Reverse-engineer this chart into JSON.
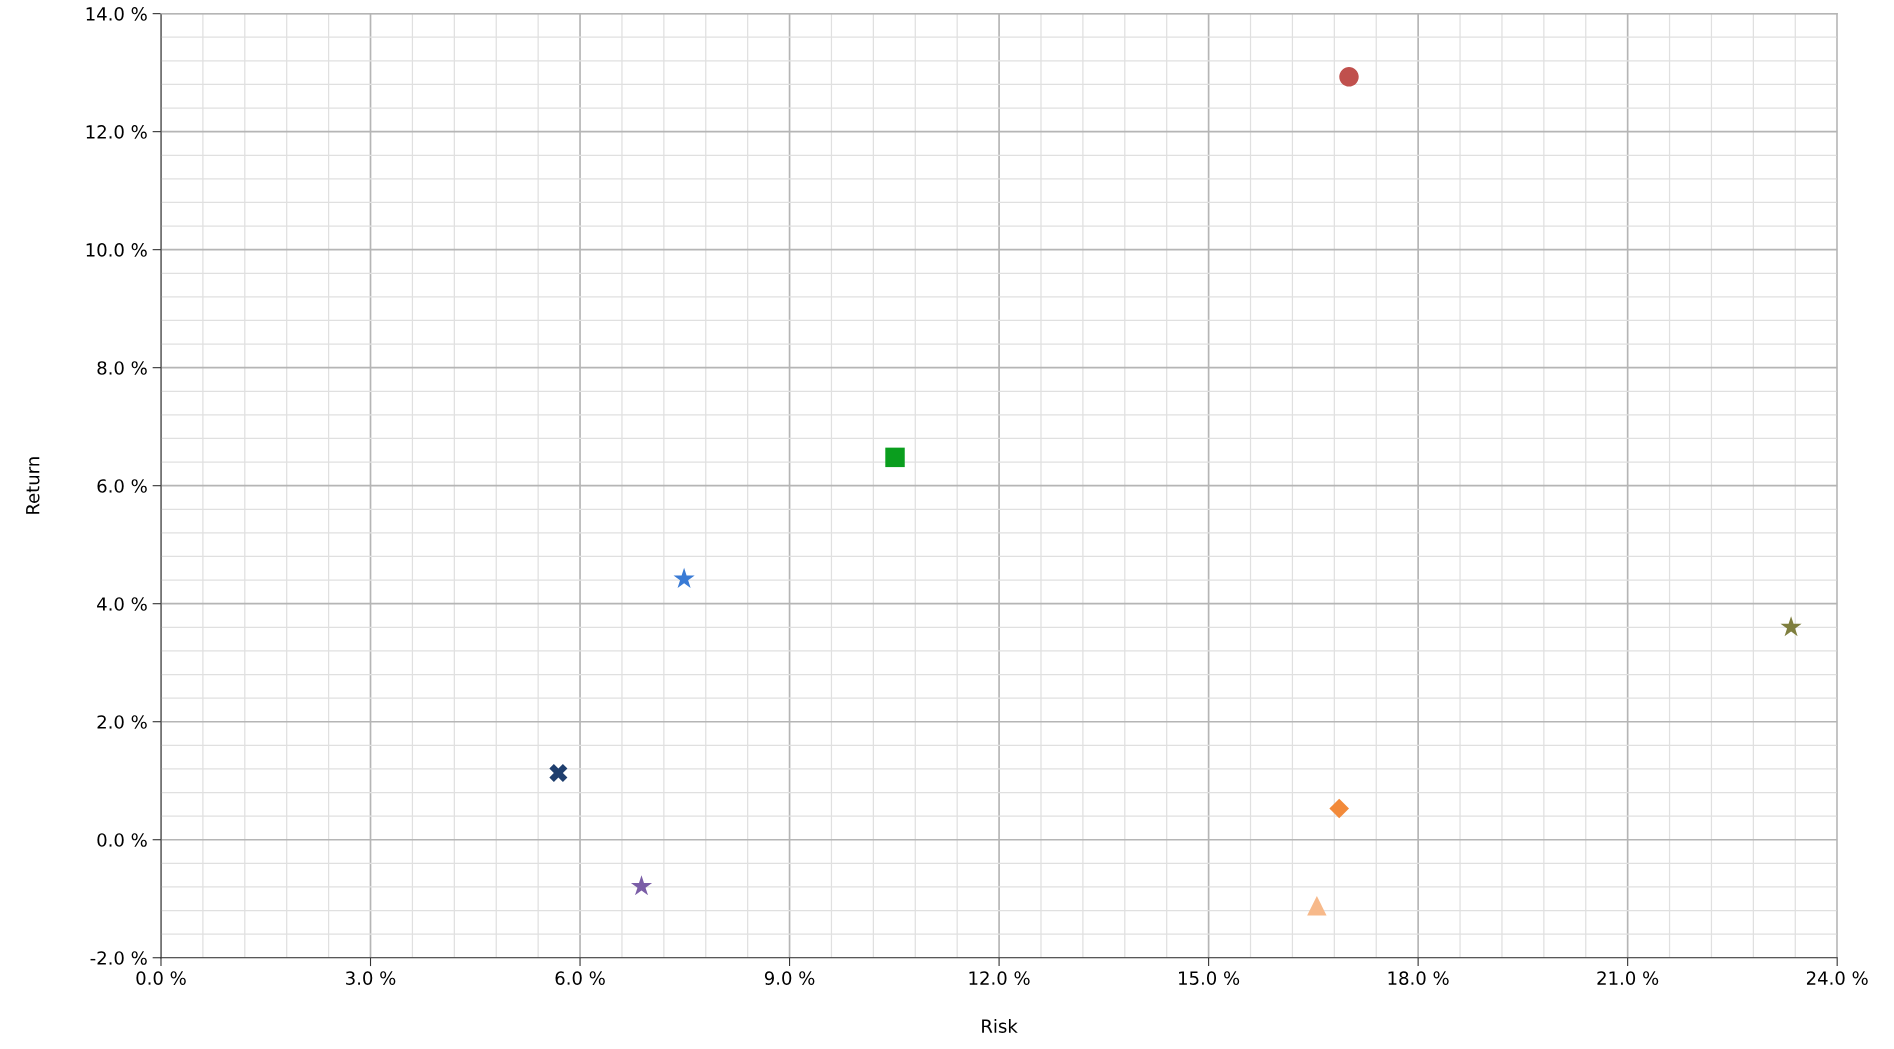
{
  "chart_data": {
    "type": "scatter",
    "xlabel": "Risk",
    "ylabel": "Return",
    "series": [
      {
        "color": "#c0504d",
        "marker": "circle",
        "x": [
          17.01
        ],
        "values": [
          12.93
        ]
      },
      {
        "color": "#0a9e1e",
        "marker": "square",
        "x": [
          10.51
        ],
        "values": [
          6.48
        ]
      },
      {
        "color": "#3a7bd5",
        "marker": "star",
        "x": [
          7.49
        ],
        "values": [
          4.42
        ]
      },
      {
        "color": "#1f3f6e",
        "marker": "cross",
        "x": [
          5.69
        ],
        "values": [
          1.13
        ]
      },
      {
        "color": "#7b5ea7",
        "marker": "star",
        "x": [
          6.88
        ],
        "values": [
          -0.79
        ]
      },
      {
        "color": "#f28a3a",
        "marker": "diamond",
        "x": [
          16.87
        ],
        "values": [
          0.53
        ]
      },
      {
        "color": "#f7b98a",
        "marker": "triangle",
        "x": [
          16.55
        ],
        "values": [
          -1.12
        ]
      },
      {
        "color": "#7f7f3f",
        "marker": "star",
        "x": [
          23.34
        ],
        "values": [
          3.6
        ]
      }
    ],
    "xlim": [
      0,
      24
    ],
    "ylim": [
      -2,
      14
    ],
    "xticks": [
      {
        "value": 0,
        "label": "0.0 %"
      },
      {
        "value": 3,
        "label": "3.0 %"
      },
      {
        "value": 6,
        "label": "6.0 %"
      },
      {
        "value": 9,
        "label": "9.0 %"
      },
      {
        "value": 12,
        "label": "12.0 %"
      },
      {
        "value": 15,
        "label": "15.0 %"
      },
      {
        "value": 18,
        "label": "18.0 %"
      },
      {
        "value": 21,
        "label": "21.0 %"
      },
      {
        "value": 24,
        "label": "24.0 %"
      }
    ],
    "yticks": [
      {
        "value": -2,
        "label": "-2.0 %"
      },
      {
        "value": 0,
        "label": "0.0 %"
      },
      {
        "value": 2,
        "label": "2.0 %"
      },
      {
        "value": 4,
        "label": "4.0 %"
      },
      {
        "value": 6,
        "label": "6.0 %"
      },
      {
        "value": 8,
        "label": "8.0 %"
      },
      {
        "value": 10,
        "label": "10.0 %"
      },
      {
        "value": 12,
        "label": "12.0 %"
      },
      {
        "value": 14,
        "label": "14.0 %"
      }
    ],
    "grid": true
  }
}
